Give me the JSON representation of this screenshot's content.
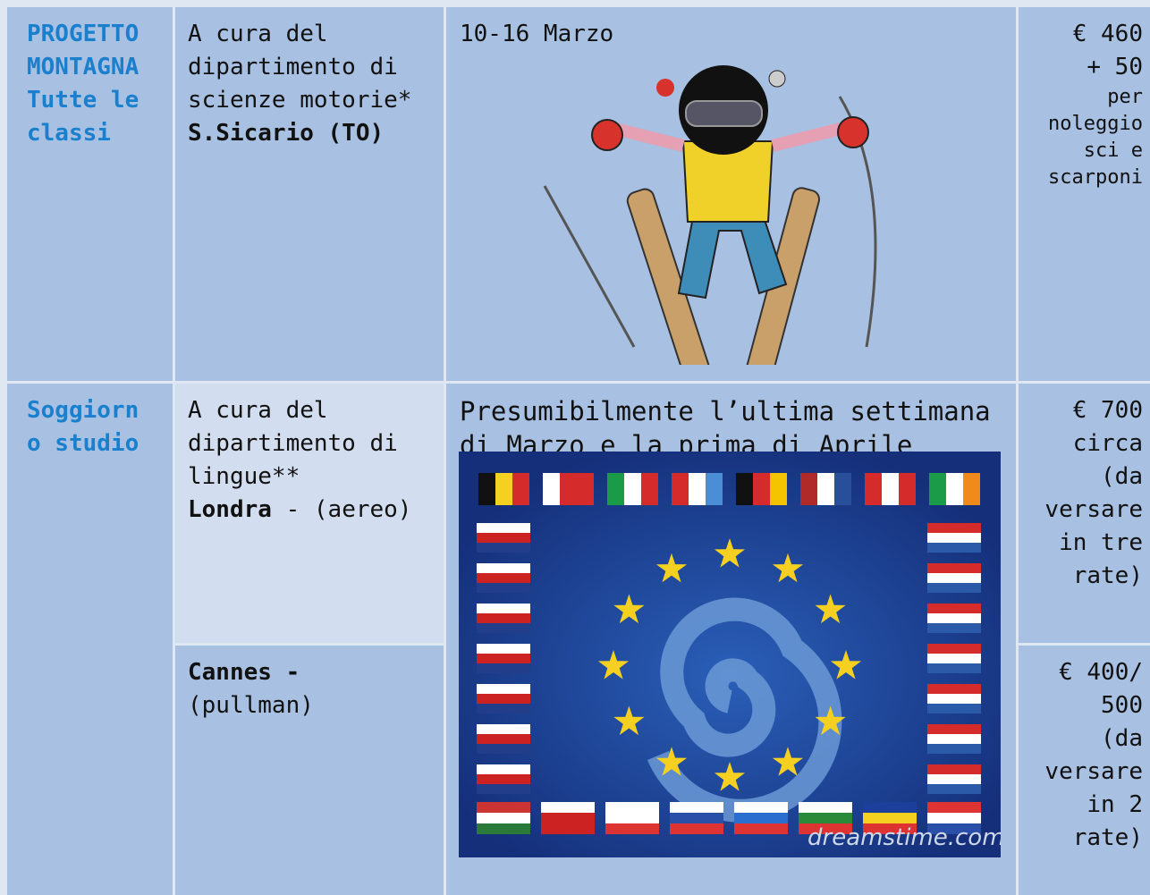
{
  "table": {
    "rows": [
      {
        "project": "PROGETTO MONTAGNA Tutte le classi",
        "organizer": "A cura del dipartimento di scienze motorie*",
        "place": "S.Sicario (TO)",
        "dates": "10-16 Marzo",
        "price_lines": [
          "€ 460",
          "+ 50"
        ],
        "note_lines": [
          "per",
          "noleggio",
          "sci e",
          "scarponi"
        ]
      },
      {
        "project": "Soggiorno studio",
        "organizer": "A cura del dipartimento di lingue**",
        "options": [
          {
            "place": "Londra",
            "transport": " - (aereo)",
            "price_lines": [
              "€ 700",
              "circa",
              "(da",
              "versare",
              "in tre",
              "rate)"
            ]
          },
          {
            "place": "Cannes -",
            "transport": "(pullman)",
            "price_lines": [
              "€ 400/",
              "500",
              "(da",
              "versare",
              "in 2",
              "rate)"
            ]
          }
        ],
        "dates": "Presumibilmente l’ultima settimana di Marzo e la prima di Aprile",
        "watermark": "dreamstime.com"
      }
    ]
  }
}
